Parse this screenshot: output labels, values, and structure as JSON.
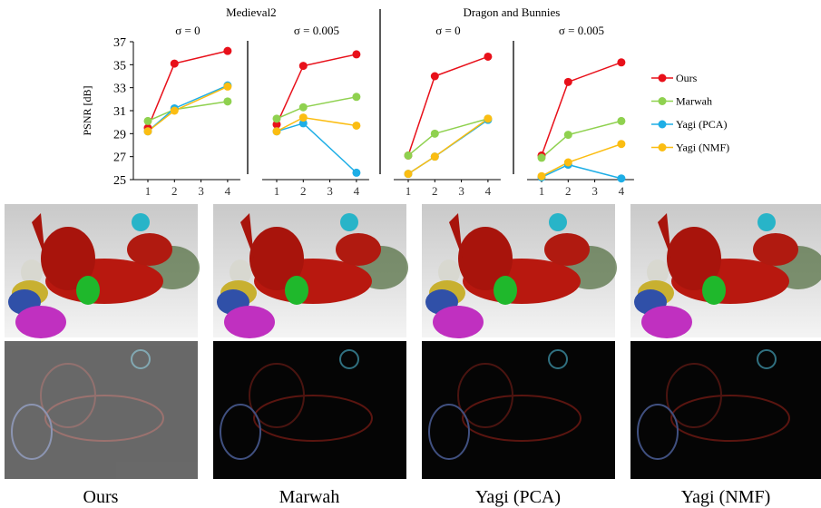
{
  "chart_data": [
    {
      "type": "line",
      "title": "Medieval2",
      "subtitle": "σ = 0",
      "ylabel": "PSNR [dB]",
      "x": [
        1,
        2,
        4
      ],
      "xticks": [
        1,
        2,
        3,
        4
      ],
      "xlim": [
        1,
        4
      ],
      "ylim": [
        25,
        37
      ],
      "yticks": [
        25,
        27,
        29,
        31,
        33,
        35,
        37
      ],
      "series": [
        {
          "name": "Ours",
          "color": "#e8101a",
          "values": [
            29.5,
            35.1,
            36.2
          ]
        },
        {
          "name": "Marwah",
          "color": "#8fd14f",
          "values": [
            30.1,
            31.1,
            31.8
          ]
        },
        {
          "name": "Yagi (PCA)",
          "color": "#1eaee6",
          "values": [
            29.2,
            31.2,
            33.2
          ]
        },
        {
          "name": "Yagi (NMF)",
          "color": "#fbbd12",
          "values": [
            29.2,
            31.0,
            33.1
          ]
        }
      ]
    },
    {
      "type": "line",
      "subtitle": "σ = 0.005",
      "x": [
        1,
        2,
        4
      ],
      "xticks": [
        1,
        2,
        3,
        4
      ],
      "xlim": [
        1,
        4
      ],
      "series": [
        {
          "name": "Ours",
          "color": "#e8101a",
          "values": [
            29.8,
            34.9,
            35.9
          ]
        },
        {
          "name": "Marwah",
          "color": "#8fd14f",
          "values": [
            30.3,
            31.3,
            32.2
          ]
        },
        {
          "name": "Yagi (PCA)",
          "color": "#1eaee6",
          "values": [
            29.2,
            29.9,
            25.6
          ]
        },
        {
          "name": "Yagi (NMF)",
          "color": "#fbbd12",
          "values": [
            29.2,
            30.4,
            29.7
          ]
        }
      ]
    },
    {
      "type": "line",
      "title": "Dragon and Bunnies",
      "subtitle": "σ = 0",
      "x": [
        1,
        2,
        4
      ],
      "xticks": [
        1,
        2,
        3,
        4
      ],
      "xlim": [
        1,
        4
      ],
      "series": [
        {
          "name": "Ours",
          "color": "#e8101a",
          "values": [
            27.1,
            34.0,
            35.7
          ]
        },
        {
          "name": "Marwah",
          "color": "#8fd14f",
          "values": [
            27.1,
            29.0,
            30.3
          ]
        },
        {
          "name": "Yagi (PCA)",
          "color": "#1eaee6",
          "values": [
            25.5,
            27.0,
            30.2
          ]
        },
        {
          "name": "Yagi (NMF)",
          "color": "#fbbd12",
          "values": [
            25.5,
            27.0,
            30.3
          ]
        }
      ]
    },
    {
      "type": "line",
      "subtitle": "σ = 0.005",
      "x": [
        1,
        2,
        4
      ],
      "xticks": [
        1,
        2,
        3,
        4
      ],
      "xlim": [
        1,
        4
      ],
      "series": [
        {
          "name": "Ours",
          "color": "#e8101a",
          "values": [
            27.1,
            33.5,
            35.2
          ]
        },
        {
          "name": "Marwah",
          "color": "#8fd14f",
          "values": [
            26.9,
            28.9,
            30.1
          ]
        },
        {
          "name": "Yagi (PCA)",
          "color": "#1eaee6",
          "values": [
            25.2,
            26.3,
            25.1
          ]
        },
        {
          "name": "Yagi (NMF)",
          "color": "#fbbd12",
          "values": [
            25.3,
            26.5,
            28.1
          ]
        }
      ]
    }
  ],
  "images": {
    "captions": [
      "Ours",
      "Marwah",
      "Yagi (PCA)",
      "Yagi (NMF)"
    ]
  }
}
